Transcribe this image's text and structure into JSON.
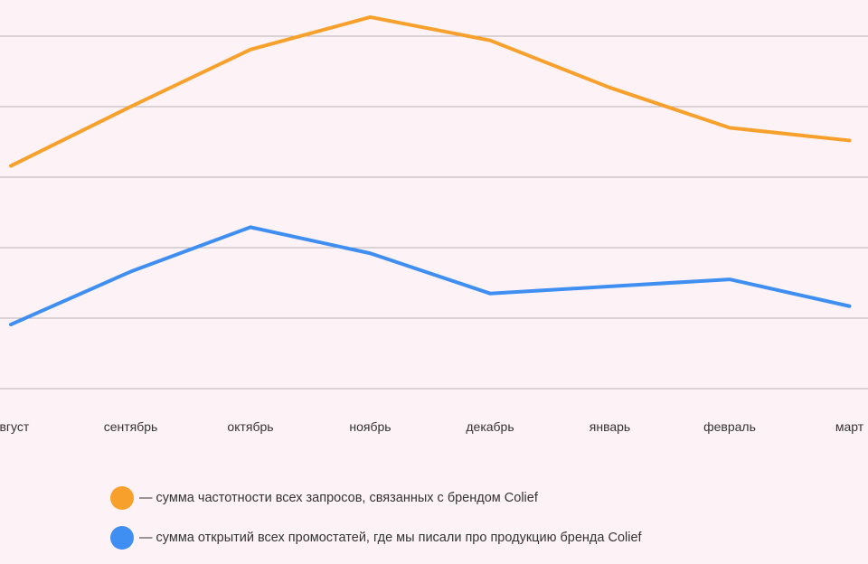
{
  "chart_data": {
    "type": "line",
    "title": "",
    "xlabel": "",
    "ylabel": "",
    "categories": [
      "август",
      "сентябрь",
      "октябрь",
      "ноябрь",
      "декабрь",
      "январь",
      "февраль",
      "март"
    ],
    "grid": true,
    "ylim": [
      0,
      5
    ],
    "series": [
      {
        "name": "— сумма частотности всех запросов, связанных с брендом Colief",
        "color": "#f8a02c",
        "values": [
          3.16,
          4.0,
          4.81,
          5.27,
          4.94,
          4.27,
          3.7,
          3.52
        ]
      },
      {
        "name": "— сумма открытий всех промостатей, где мы писали про продукцию бренда Colief",
        "color": "#3f8ef2",
        "values": [
          0.91,
          1.66,
          2.29,
          1.92,
          1.35,
          1.45,
          1.55,
          1.17
        ]
      }
    ]
  },
  "colors": {
    "background": "#fdf3f6",
    "gridline": "#b7b1b2"
  }
}
